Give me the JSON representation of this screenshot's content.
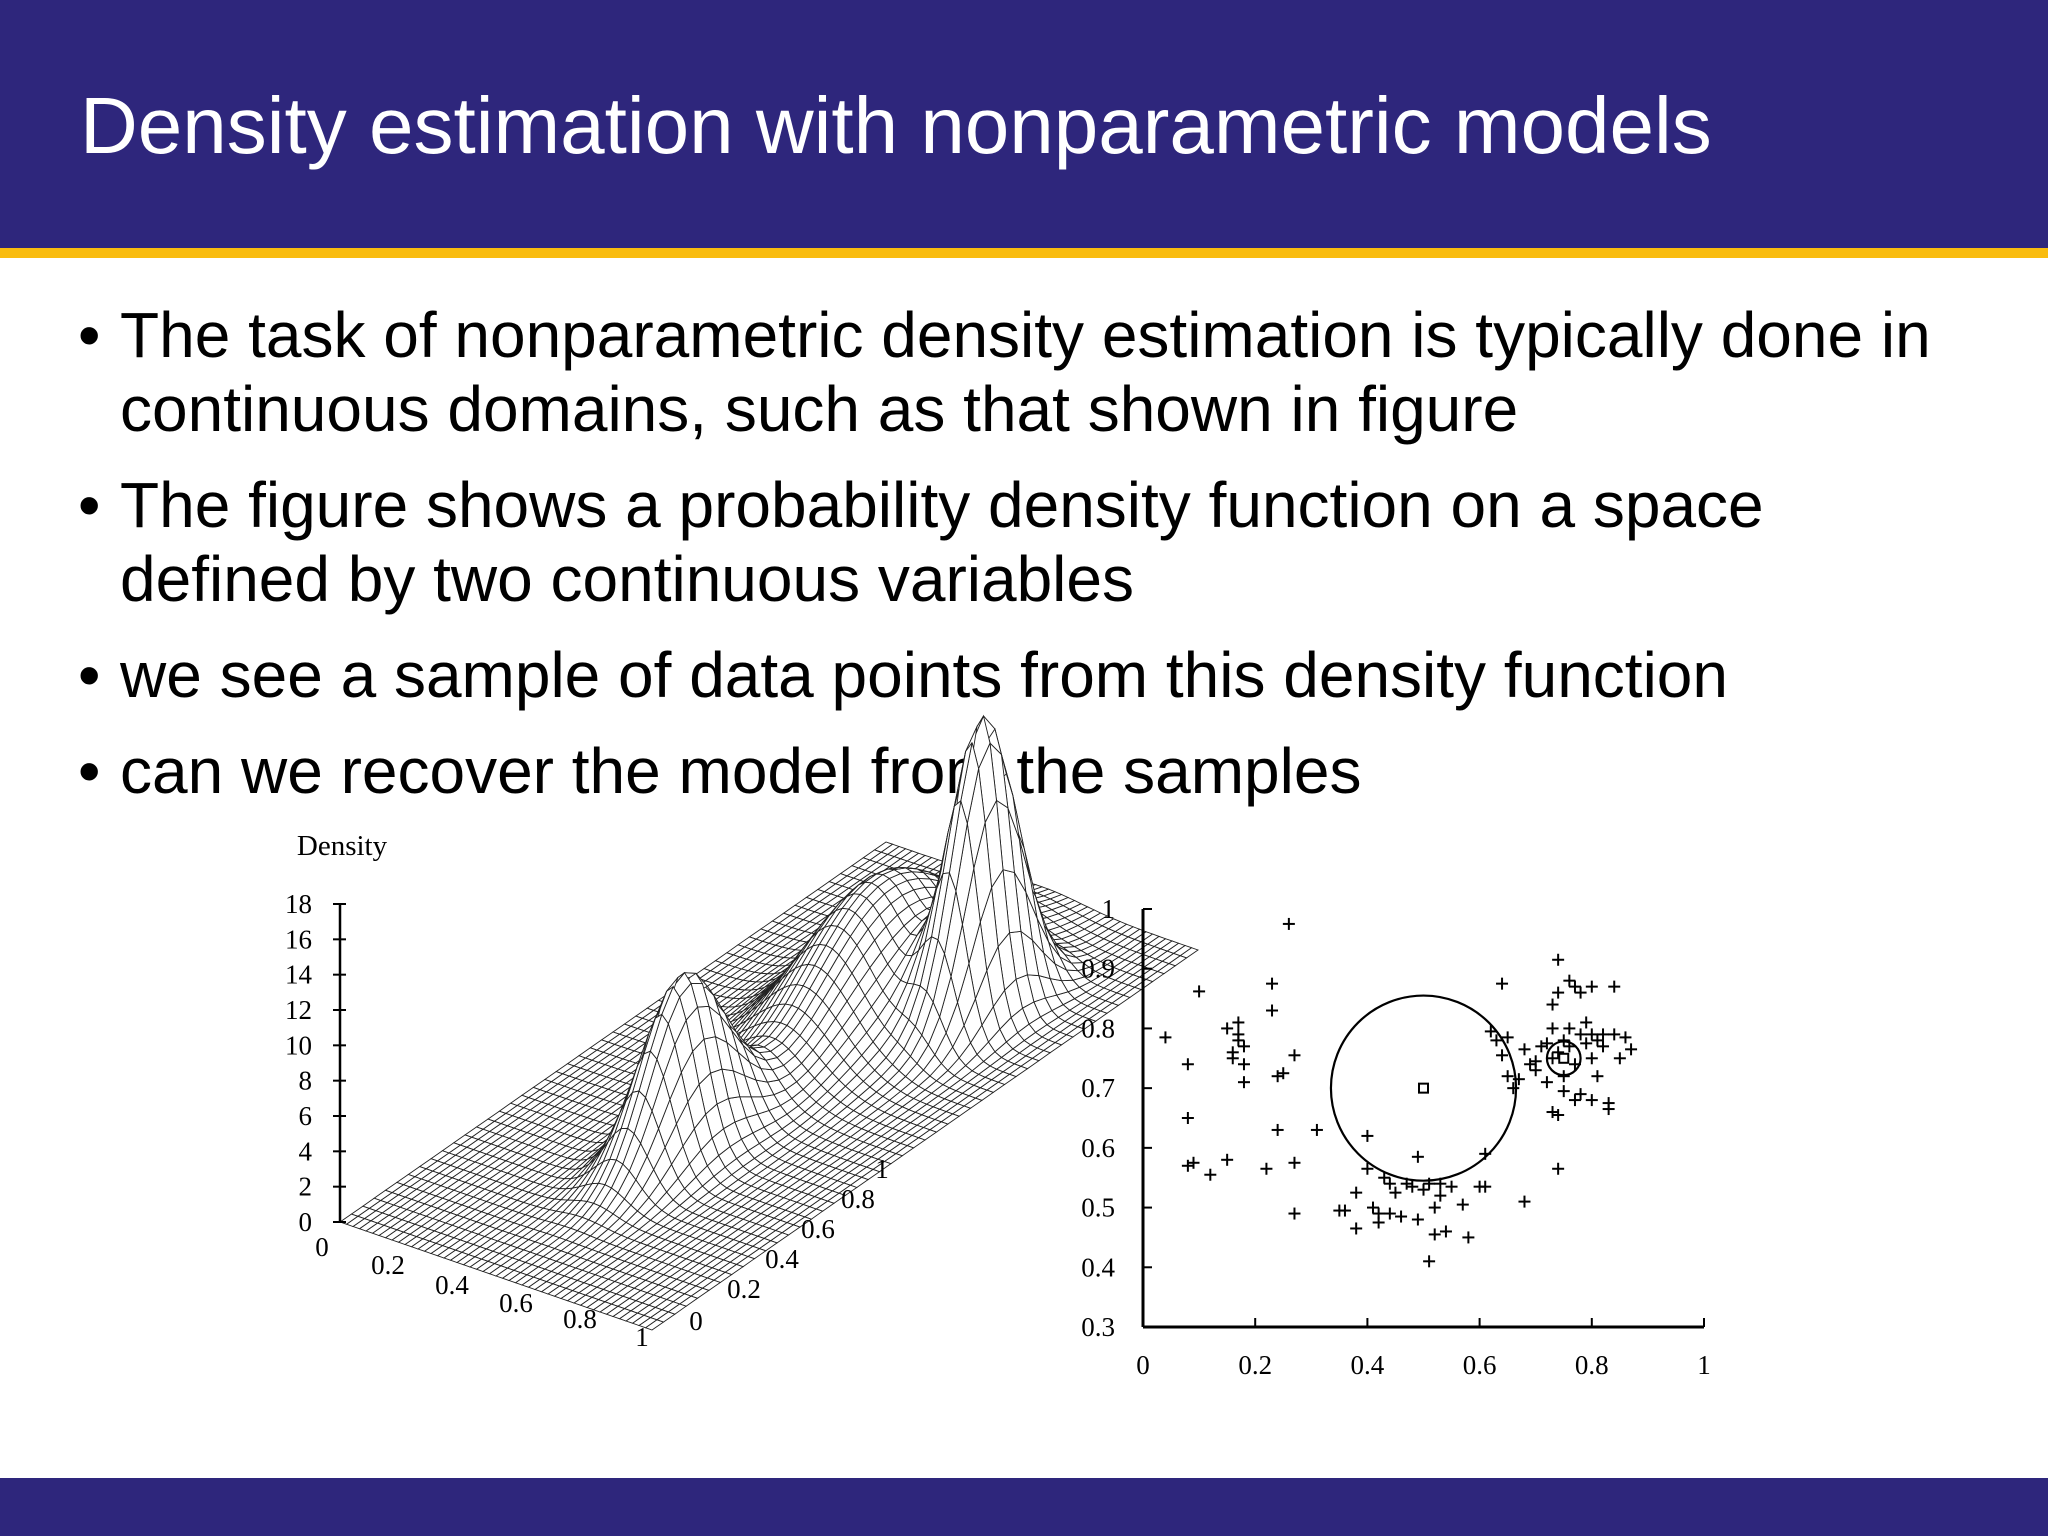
{
  "slide": {
    "title": "Density estimation with nonparametric models",
    "bullets": [
      "The task of nonparametric density estimation is typically done in continuous domains, such as that shown in figure",
      "The figure shows a probability density function on a space defined by two continuous variables",
      "we see a sample of data points from this density function",
      "can we recover the model from the samples"
    ],
    "bullet_marker": "•"
  },
  "colors": {
    "header": "#2e267c",
    "accent_rule": "#f9bc0f",
    "text": "#000000"
  },
  "chart_data": [
    {
      "type": "surface",
      "title": "",
      "zlabel": "Density",
      "zlim": [
        0,
        18
      ],
      "z_ticks": [
        "0",
        "2",
        "4",
        "6",
        "8",
        "10",
        "12",
        "14",
        "16",
        "18"
      ],
      "x_ticks": [
        "0",
        "0.2",
        "0.4",
        "0.6",
        "0.8",
        "1"
      ],
      "y_ticks": [
        "0",
        "0.2",
        "0.4",
        "0.6",
        "0.8",
        "1"
      ],
      "components": [
        {
          "cx": 0.5,
          "cy": 0.7,
          "height": 7.5,
          "sigma": 0.13
        },
        {
          "cx": 0.75,
          "cy": 0.75,
          "height": 16,
          "sigma": 0.055
        },
        {
          "cx": 0.52,
          "cy": 0.33,
          "height": 10,
          "sigma": 0.07
        }
      ]
    },
    {
      "type": "scatter",
      "title": "",
      "xlim": [
        0,
        1
      ],
      "ylim": [
        0.3,
        1
      ],
      "x_ticks": [
        "0",
        "0.2",
        "0.4",
        "0.6",
        "0.8",
        "1"
      ],
      "y_ticks": [
        "0.3",
        "0.4",
        "0.5",
        "0.6",
        "0.7",
        "0.8",
        "0.9",
        "1"
      ],
      "marker": "+",
      "points": [
        [
          0.04,
          0.785
        ],
        [
          0.1,
          0.862
        ],
        [
          0.08,
          0.74
        ],
        [
          0.08,
          0.65
        ],
        [
          0.08,
          0.57
        ],
        [
          0.09,
          0.575
        ],
        [
          0.12,
          0.555
        ],
        [
          0.15,
          0.58
        ],
        [
          0.15,
          0.8
        ],
        [
          0.16,
          0.76
        ],
        [
          0.17,
          0.81
        ],
        [
          0.17,
          0.78
        ],
        [
          0.18,
          0.77
        ],
        [
          0.18,
          0.74
        ],
        [
          0.18,
          0.71
        ],
        [
          0.16,
          0.75
        ],
        [
          0.17,
          0.79
        ],
        [
          0.22,
          0.565
        ],
        [
          0.23,
          0.875
        ],
        [
          0.23,
          0.83
        ],
        [
          0.24,
          0.72
        ],
        [
          0.25,
          0.725
        ],
        [
          0.24,
          0.63
        ],
        [
          0.26,
          0.975
        ],
        [
          0.27,
          0.755
        ],
        [
          0.27,
          0.575
        ],
        [
          0.27,
          0.49
        ],
        [
          0.31,
          0.63
        ],
        [
          0.35,
          0.495
        ],
        [
          0.36,
          0.495
        ],
        [
          0.38,
          0.525
        ],
        [
          0.38,
          0.465
        ],
        [
          0.4,
          0.62
        ],
        [
          0.4,
          0.565
        ],
        [
          0.41,
          0.5
        ],
        [
          0.42,
          0.475
        ],
        [
          0.42,
          0.49
        ],
        [
          0.43,
          0.55
        ],
        [
          0.44,
          0.54
        ],
        [
          0.44,
          0.49
        ],
        [
          0.45,
          0.525
        ],
        [
          0.46,
          0.485
        ],
        [
          0.47,
          0.54
        ],
        [
          0.48,
          0.535
        ],
        [
          0.49,
          0.585
        ],
        [
          0.49,
          0.48
        ],
        [
          0.5,
          0.53
        ],
        [
          0.51,
          0.54
        ],
        [
          0.51,
          0.41
        ],
        [
          0.52,
          0.5
        ],
        [
          0.52,
          0.455
        ],
        [
          0.53,
          0.54
        ],
        [
          0.53,
          0.52
        ],
        [
          0.54,
          0.46
        ],
        [
          0.55,
          0.535
        ],
        [
          0.57,
          0.505
        ],
        [
          0.58,
          0.45
        ],
        [
          0.6,
          0.535
        ],
        [
          0.61,
          0.535
        ],
        [
          0.61,
          0.59
        ],
        [
          0.62,
          0.795
        ],
        [
          0.63,
          0.78
        ],
        [
          0.64,
          0.875
        ],
        [
          0.64,
          0.755
        ],
        [
          0.65,
          0.785
        ],
        [
          0.65,
          0.72
        ],
        [
          0.66,
          0.7
        ],
        [
          0.67,
          0.715
        ],
        [
          0.68,
          0.765
        ],
        [
          0.68,
          0.51
        ],
        [
          0.69,
          0.74
        ],
        [
          0.7,
          0.73
        ],
        [
          0.7,
          0.745
        ],
        [
          0.71,
          0.77
        ],
        [
          0.72,
          0.775
        ],
        [
          0.72,
          0.71
        ],
        [
          0.73,
          0.75
        ],
        [
          0.73,
          0.84
        ],
        [
          0.73,
          0.8
        ],
        [
          0.73,
          0.66
        ],
        [
          0.74,
          0.915
        ],
        [
          0.74,
          0.86
        ],
        [
          0.74,
          0.76
        ],
        [
          0.74,
          0.655
        ],
        [
          0.74,
          0.565
        ],
        [
          0.75,
          0.78
        ],
        [
          0.75,
          0.72
        ],
        [
          0.75,
          0.695
        ],
        [
          0.76,
          0.88
        ],
        [
          0.76,
          0.8
        ],
        [
          0.76,
          0.77
        ],
        [
          0.77,
          0.87
        ],
        [
          0.77,
          0.74
        ],
        [
          0.77,
          0.68
        ],
        [
          0.78,
          0.86
        ],
        [
          0.78,
          0.79
        ],
        [
          0.78,
          0.69
        ],
        [
          0.79,
          0.775
        ],
        [
          0.79,
          0.81
        ],
        [
          0.8,
          0.87
        ],
        [
          0.8,
          0.79
        ],
        [
          0.8,
          0.75
        ],
        [
          0.8,
          0.68
        ],
        [
          0.81,
          0.78
        ],
        [
          0.81,
          0.72
        ],
        [
          0.82,
          0.79
        ],
        [
          0.82,
          0.77
        ],
        [
          0.83,
          0.675
        ],
        [
          0.83,
          0.665
        ],
        [
          0.84,
          0.87
        ],
        [
          0.84,
          0.79
        ],
        [
          0.85,
          0.75
        ],
        [
          0.86,
          0.785
        ],
        [
          0.87,
          0.765
        ]
      ],
      "circles": [
        {
          "cx": 0.5,
          "cy": 0.7,
          "r": 0.165
        },
        {
          "cx": 0.75,
          "cy": 0.75,
          "r": 0.03
        }
      ],
      "centers": [
        {
          "x": 0.5,
          "y": 0.7
        },
        {
          "x": 0.75,
          "y": 0.75
        }
      ]
    }
  ]
}
